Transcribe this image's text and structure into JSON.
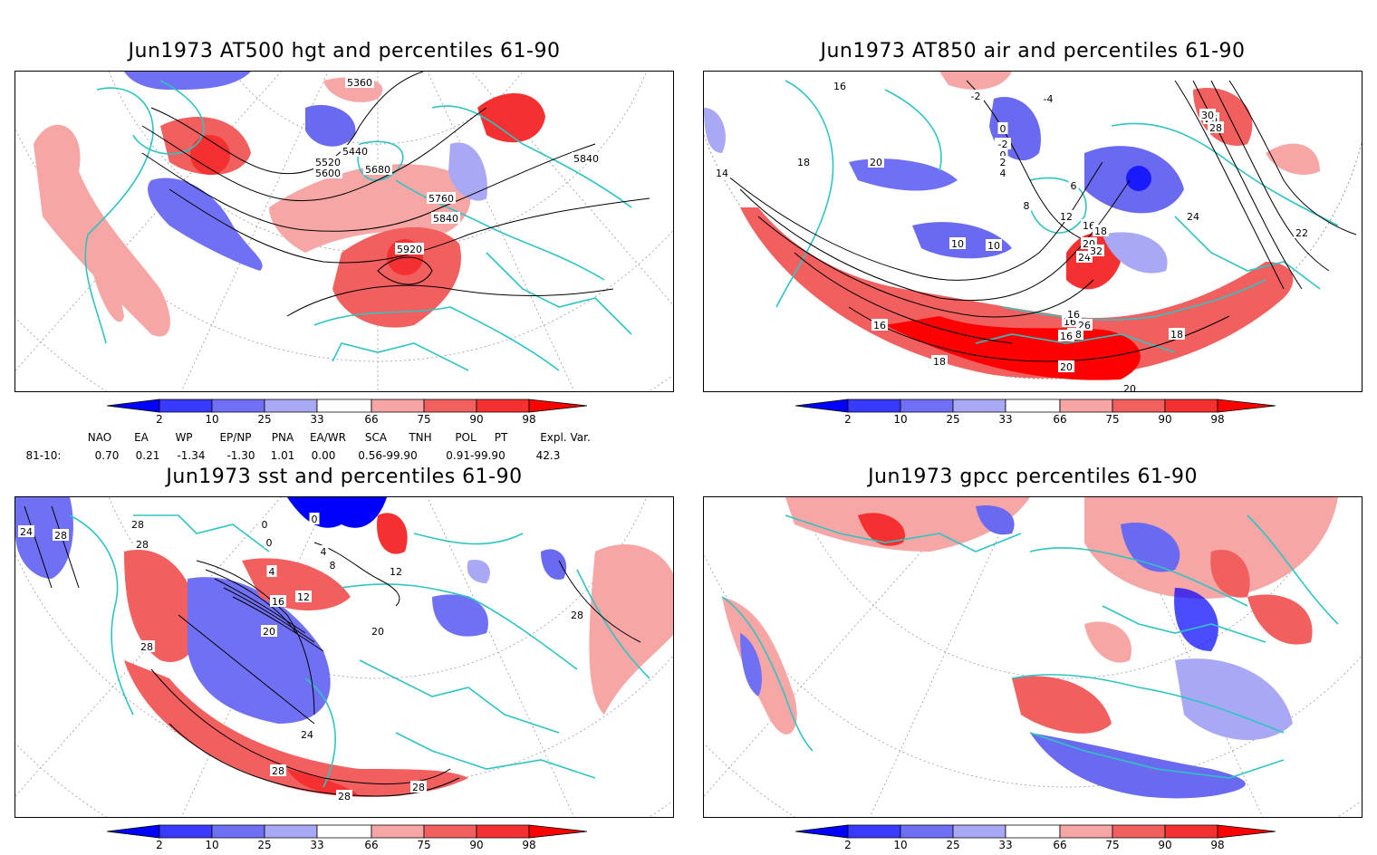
{
  "panels": [
    {
      "title": "Jun1973 AT500 hgt and percentiles 61-90",
      "contour_labels": [
        "5360",
        "5440",
        "5520",
        "5600",
        "5680",
        "5760",
        "5840",
        "5840",
        "5920"
      ]
    },
    {
      "title": "Jun1973 AT850 air and percentiles 61-90",
      "contour_labels": [
        "16",
        "18",
        "20",
        "-2",
        "-4",
        "0",
        "-2",
        "0",
        "2",
        "4",
        "6",
        "8",
        "10",
        "10",
        "12",
        "14",
        "16",
        "18",
        "20",
        "24",
        "26",
        "28",
        "30",
        "32",
        "16",
        "18",
        "20",
        "22",
        "24",
        "26",
        "28",
        "16",
        "16",
        "16",
        "18",
        "20"
      ]
    },
    {
      "title": "Jun1973 sst and percentiles 61-90",
      "contour_labels": [
        "24",
        "28",
        "28",
        "28",
        "0",
        "0",
        "0",
        "4",
        "4",
        "8",
        "12",
        "16",
        "12",
        "20",
        "20",
        "24",
        "28",
        "28",
        "28",
        "28",
        "28"
      ]
    },
    {
      "title": "Jun1973 gpcc percentiles 61-90",
      "contour_labels": []
    }
  ],
  "colorbar": {
    "labels": [
      "2",
      "10",
      "25",
      "33",
      "66",
      "75",
      "90",
      "98"
    ],
    "colors": [
      "#0000ff",
      "#3a3aff",
      "#7070f5",
      "#a8a8f5",
      "#ffffff",
      "#f7a6a6",
      "#f25f5f",
      "#f53030",
      "#ff0000"
    ]
  },
  "indices": {
    "headers": [
      "NAO",
      "EA",
      "WP",
      "EP/NP",
      "PNA",
      "EA/WR",
      "SCA",
      "TNH",
      "POL",
      "PT",
      "Expl. Var."
    ],
    "row_label": "81-10:",
    "values": [
      "0.70",
      "0.21",
      "-1.34",
      "-1.30",
      "1.01",
      "0.00",
      "0.56-99.90",
      "0.91-99.90",
      "42.3"
    ]
  },
  "colors": {
    "coast": "#2ec4c4",
    "warm": "#f53030",
    "cold": "#6a6af0",
    "contour": "#000000"
  }
}
